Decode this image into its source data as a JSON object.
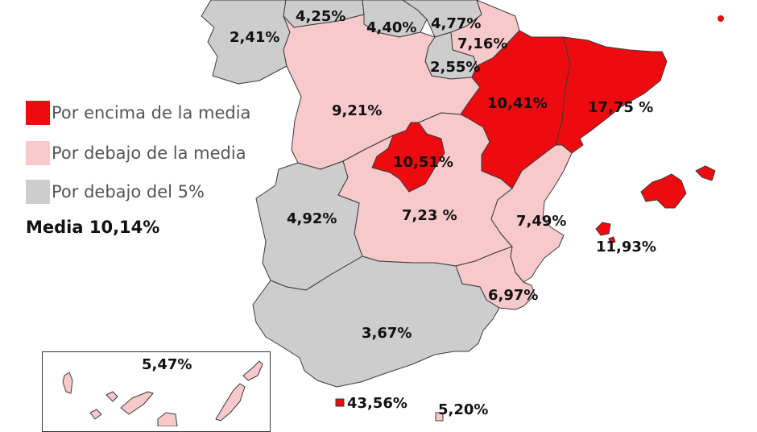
{
  "colors": {
    "above": "#ee0b10",
    "below": "#f7c9cb",
    "low": "#cdcdcd"
  },
  "legend": {
    "items": [
      {
        "label": "Por encima de la media",
        "color": "#ee0b10"
      },
      {
        "label": "Por debajo de la media",
        "color": "#f7c9cb"
      },
      {
        "label": "Por debajo del 5%",
        "color": "#cdcdcd"
      }
    ],
    "media": "Media 10,14%"
  },
  "regions": [
    {
      "name": "galicia",
      "label": "2,41%",
      "category": "low"
    },
    {
      "name": "asturias",
      "label": "4,25%",
      "category": "low"
    },
    {
      "name": "cantabria",
      "label": "4,40%",
      "category": "low"
    },
    {
      "name": "pais-vasco",
      "label": "4,77%",
      "category": "low"
    },
    {
      "name": "navarra",
      "label": "7,16%",
      "category": "below"
    },
    {
      "name": "la-rioja",
      "label": "2,55%",
      "category": "low"
    },
    {
      "name": "castilla-leon",
      "label": "9,21%",
      "category": "below"
    },
    {
      "name": "aragon",
      "label": "10,41%",
      "category": "above"
    },
    {
      "name": "cataluna",
      "label": "17,75 %",
      "category": "above"
    },
    {
      "name": "madrid",
      "label": "10,51%",
      "category": "above"
    },
    {
      "name": "extremadura",
      "label": "4,92%",
      "category": "low"
    },
    {
      "name": "castilla-la-mancha",
      "label": "7,23 %",
      "category": "below"
    },
    {
      "name": "valencia",
      "label": "7,49%",
      "category": "below"
    },
    {
      "name": "baleares",
      "label": "11,93%",
      "category": "above"
    },
    {
      "name": "murcia",
      "label": "6,97%",
      "category": "below"
    },
    {
      "name": "andalucia",
      "label": "3,67%",
      "category": "low"
    },
    {
      "name": "canarias",
      "label": "5,47%",
      "category": "below"
    },
    {
      "name": "ceuta",
      "label": "43,56%",
      "category": "above"
    },
    {
      "name": "melilla",
      "label": "5,20%",
      "category": "below"
    }
  ]
}
